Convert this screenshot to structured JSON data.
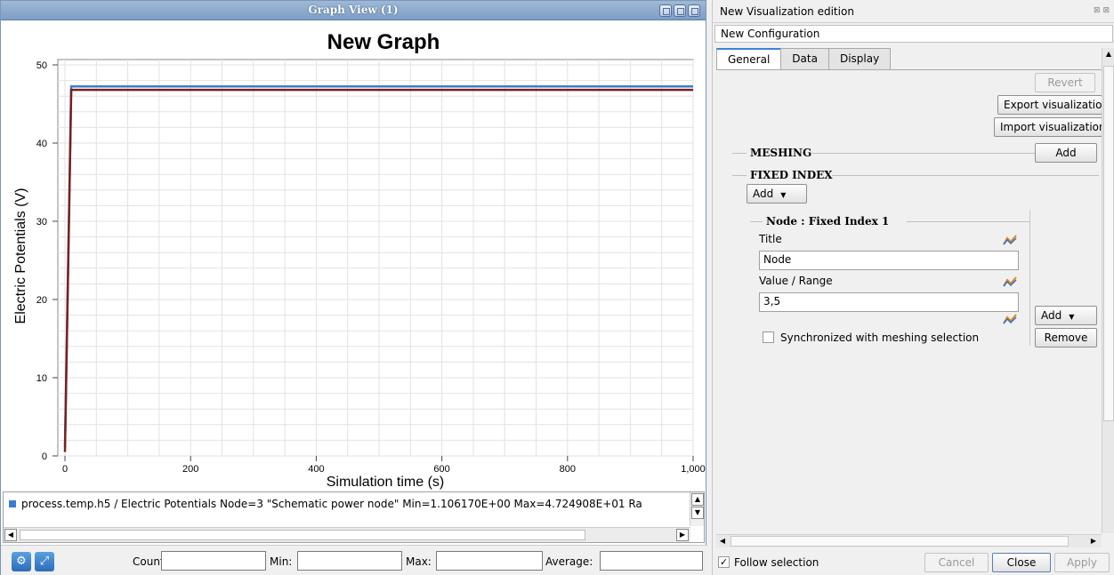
{
  "graph_window": {
    "title": "Graph View (1)"
  },
  "chart_data": {
    "type": "line",
    "title": "New Graph",
    "xlabel": "Simulation time (s)",
    "ylabel": "Electric Potentials (V)",
    "xlim": [
      0,
      1000
    ],
    "ylim": [
      0,
      50
    ],
    "x_ticks": [
      "0",
      "200",
      "400",
      "600",
      "800",
      "1,000"
    ],
    "x_tick_values": [
      0,
      200,
      400,
      600,
      800,
      1000
    ],
    "y_ticks": [
      "0",
      "10",
      "20",
      "30",
      "40",
      "50"
    ],
    "y_tick_values": [
      0,
      10,
      20,
      30,
      40,
      50
    ],
    "grid": true,
    "series": [
      {
        "color": "#3a7bd5",
        "x": [
          0,
          10,
          1000
        ],
        "y": [
          1.10617,
          47.24908,
          47.24908
        ]
      },
      {
        "color": "#7a1f1f",
        "x": [
          0,
          10,
          1000
        ],
        "y": [
          0.5,
          46.8,
          46.8
        ]
      }
    ]
  },
  "legend": {
    "rows": [
      {
        "text": "process.temp.h5 / Electric Potentials   Node=3 \"Schematic power node\"  Min=1.106170E+00  Max=4.724908E+01  Ra",
        "color": "#3a7bd5"
      }
    ]
  },
  "stats": {
    "count_label": "Count:",
    "min_label": "Min:",
    "max_label": "Max:",
    "average_label": "Average:"
  },
  "panel": {
    "title": "New Visualization edition",
    "config_name": "New Configuration",
    "tabs": [
      "General",
      "Data",
      "Display"
    ],
    "revert_label": "Revert",
    "export_label": "Export visualization",
    "import_label": "Import visualization",
    "meshing_label": "MESHING",
    "meshing_add_label": "Add",
    "fixed_index_label": "FIXED INDEX",
    "fixed_add_label": "Add",
    "node_group_label": "Node : Fixed Index 1",
    "title_field_label": "Title",
    "title_field_value": "Node",
    "value_range_label": "Value / Range",
    "value_range_value": "3,5",
    "sync_label": "Synchronized with meshing selection",
    "node_add_label": "Add",
    "remove_label": "Remove",
    "follow_selection_label": "Follow selection",
    "cancel_label": "Cancel",
    "close_label": "Close",
    "apply_label": "Apply"
  }
}
